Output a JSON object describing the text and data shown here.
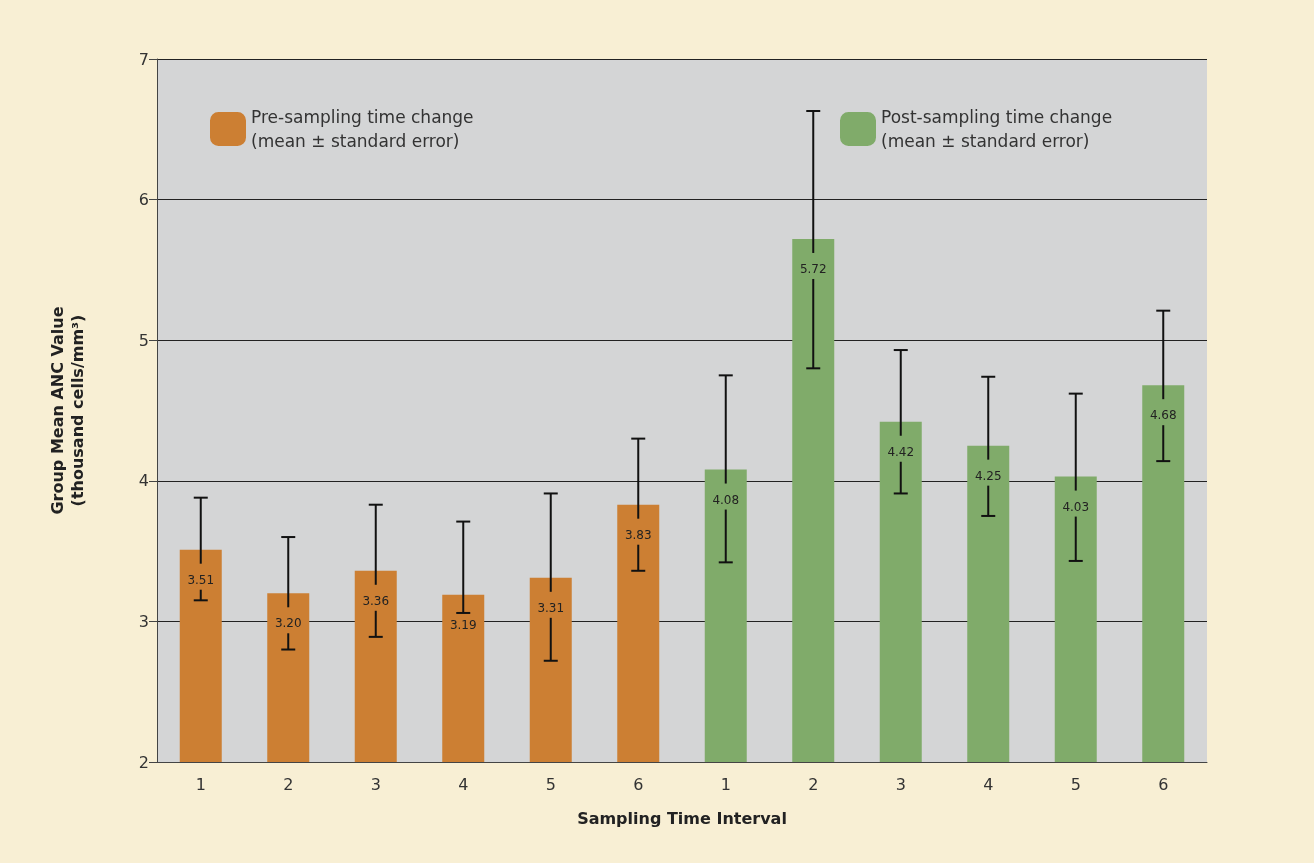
{
  "chart_data": {
    "type": "bar",
    "xlabel": "Sampling Time Interval",
    "ylabel": "Group Mean ANC Value\n(thousand cells/mm³)",
    "categories": [
      "1",
      "2",
      "3",
      "4",
      "5",
      "6",
      "1",
      "2",
      "3",
      "4",
      "5",
      "6"
    ],
    "series": [
      {
        "name": "Pre-sampling time change (mean ± standard error)",
        "color": "#cc7f33",
        "values": [
          3.51,
          3.2,
          3.36,
          3.19,
          3.31,
          3.83,
          null,
          null,
          null,
          null,
          null,
          null
        ],
        "value_labels": [
          "3.51",
          "3.20",
          "3.36",
          "3.19",
          "3.31",
          "3.83",
          null,
          null,
          null,
          null,
          null,
          null
        ],
        "errors": [
          [
            3.15,
            3.88
          ],
          [
            2.8,
            3.6
          ],
          [
            2.89,
            3.83
          ],
          [
            3.06,
            3.71
          ],
          [
            2.72,
            3.91
          ],
          [
            3.36,
            4.3
          ],
          null,
          null,
          null,
          null,
          null,
          null
        ]
      },
      {
        "name": "Post-sampling time change (mean ± standard error)",
        "color": "#80ab6a",
        "values": [
          null,
          null,
          null,
          null,
          null,
          null,
          4.08,
          5.72,
          4.42,
          4.25,
          4.03,
          4.68
        ],
        "value_labels": [
          null,
          null,
          null,
          null,
          null,
          null,
          "4.08",
          "5.72",
          "4.42",
          "4.25",
          "4.03",
          "4.68"
        ],
        "errors": [
          null,
          null,
          null,
          null,
          null,
          null,
          [
            3.42,
            4.75
          ],
          [
            4.8,
            6.63
          ],
          [
            3.91,
            4.93
          ],
          [
            3.75,
            4.74
          ],
          [
            3.43,
            4.62
          ],
          [
            4.14,
            5.21
          ]
        ]
      }
    ],
    "ylim": [
      2,
      7
    ],
    "yticks": [
      2,
      3,
      4,
      5,
      6,
      7
    ],
    "grid": "y",
    "legend": "top"
  }
}
